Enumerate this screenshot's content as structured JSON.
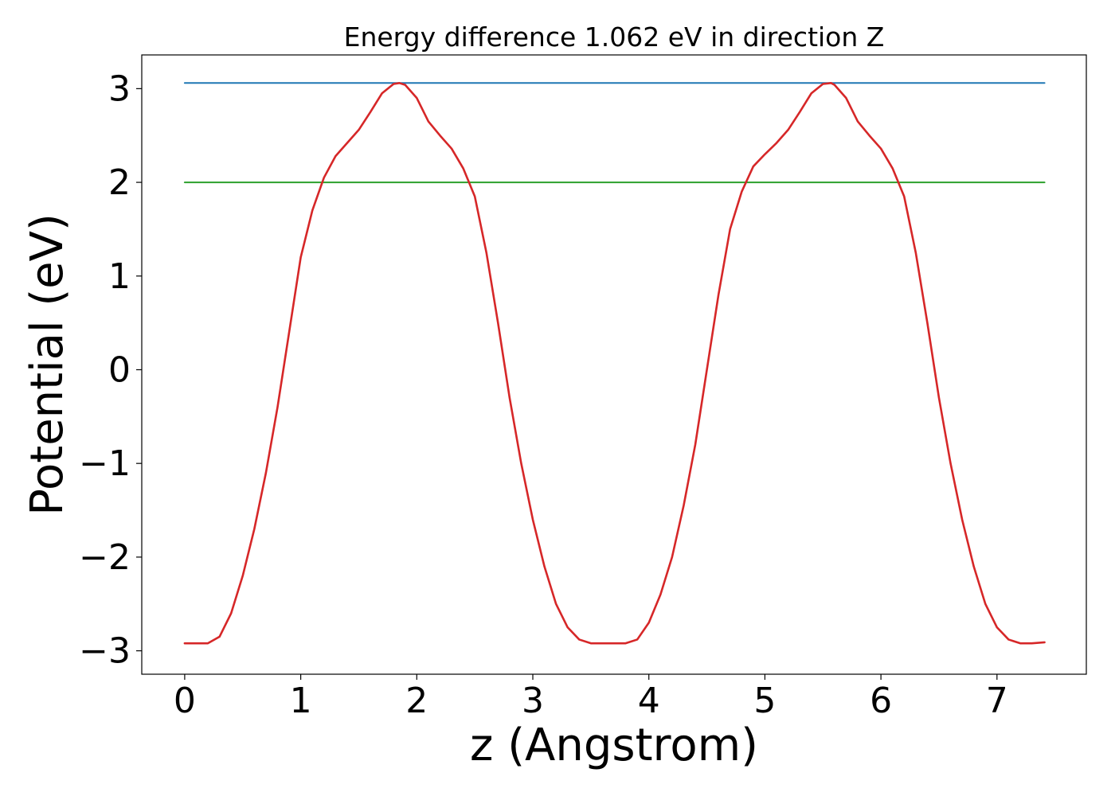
{
  "chart_data": {
    "type": "line",
    "title": "Energy difference 1.062 eV in direction Z",
    "xlabel": "z (Angstrom)",
    "ylabel": "Potential (eV)",
    "xlim": [
      -0.37,
      7.77
    ],
    "ylim": [
      -3.25,
      3.36
    ],
    "xticks": [
      0,
      1,
      2,
      3,
      4,
      5,
      6,
      7
    ],
    "xtick_labels": [
      "0",
      "1",
      "2",
      "3",
      "4",
      "5",
      "6",
      "7"
    ],
    "yticks": [
      -3,
      -2,
      -1,
      0,
      1,
      2,
      3
    ],
    "ytick_labels": [
      "−3",
      "−2",
      "−1",
      "0",
      "1",
      "2",
      "3"
    ],
    "grid": false,
    "series": [
      {
        "color": "#d62728",
        "x": [
          0.0,
          0.2,
          0.3,
          0.4,
          0.5,
          0.6,
          0.7,
          0.8,
          0.9,
          1.0,
          1.1,
          1.2,
          1.3,
          1.4,
          1.5,
          1.6,
          1.7,
          1.8,
          1.85,
          1.9,
          2.0,
          2.1,
          2.2,
          2.3,
          2.4,
          2.5,
          2.6,
          2.7,
          2.8,
          2.9,
          3.0,
          3.1,
          3.2,
          3.3,
          3.4,
          3.5,
          3.6,
          3.7,
          3.8,
          3.9,
          4.0,
          4.1,
          4.2,
          4.3,
          4.4,
          4.5,
          4.6,
          4.7,
          4.8,
          4.9,
          5.0,
          5.1,
          5.2,
          5.3,
          5.4,
          5.5,
          5.57,
          5.6,
          5.7,
          5.8,
          5.9,
          6.0,
          6.1,
          6.2,
          6.3,
          6.4,
          6.5,
          6.6,
          6.7,
          6.8,
          6.9,
          7.0,
          7.1,
          7.2,
          7.3,
          7.41
        ],
        "y": [
          -2.92,
          -2.92,
          -2.85,
          -2.6,
          -2.2,
          -1.7,
          -1.1,
          -0.4,
          0.4,
          1.2,
          1.7,
          2.05,
          2.28,
          2.42,
          2.56,
          2.75,
          2.95,
          3.05,
          3.06,
          3.04,
          2.9,
          2.65,
          2.5,
          2.36,
          2.15,
          1.85,
          1.25,
          0.5,
          -0.3,
          -1.0,
          -1.6,
          -2.1,
          -2.5,
          -2.75,
          -2.88,
          -2.92,
          -2.92,
          -2.92,
          -2.92,
          -2.88,
          -2.7,
          -2.4,
          -2.0,
          -1.45,
          -0.8,
          0.0,
          0.8,
          1.5,
          1.9,
          2.17,
          2.3,
          2.42,
          2.56,
          2.75,
          2.95,
          3.05,
          3.06,
          3.04,
          2.9,
          2.65,
          2.5,
          2.36,
          2.15,
          1.85,
          1.25,
          0.5,
          -0.3,
          -1.0,
          -1.6,
          -2.1,
          -2.5,
          -2.75,
          -2.88,
          -2.92,
          -2.92,
          -2.91
        ]
      },
      {
        "color": "#1f77b4",
        "x": [
          0.0,
          7.41
        ],
        "y": [
          3.06,
          3.06
        ]
      },
      {
        "color": "#2ca02c",
        "x": [
          0.0,
          7.41
        ],
        "y": [
          2.0,
          2.0
        ]
      }
    ]
  }
}
